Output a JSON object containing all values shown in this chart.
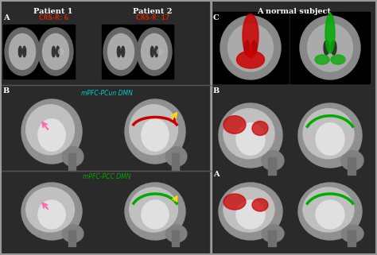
{
  "background_color": "#b0b0b0",
  "left_panel_bg": "#1a1a1a",
  "right_panel_bg": "#1a1a1a",
  "title_patient1": "Patient 1",
  "title_patient2": "Patient 2",
  "title_normal": "A normal subject",
  "label_A": "A",
  "label_B": "B",
  "label_C": "C",
  "crs_r_6": "CRS-R: 6",
  "crs_r_17": "CRS-R: 17",
  "dmn_label1": "mPFC-PCun DMN",
  "dmn_label2": "mPFC-PCC DMN",
  "divider_color": "#888888",
  "text_color_red": "#cc2200",
  "text_color_cyan": "#00cccc",
  "text_color_green": "#00aa00",
  "brain_gray": "#888888",
  "brain_light": "#cccccc",
  "highlight_red": "#cc0000",
  "highlight_green": "#00aa00",
  "highlight_pink": "#ff66aa",
  "highlight_yellow": "#ffdd00"
}
